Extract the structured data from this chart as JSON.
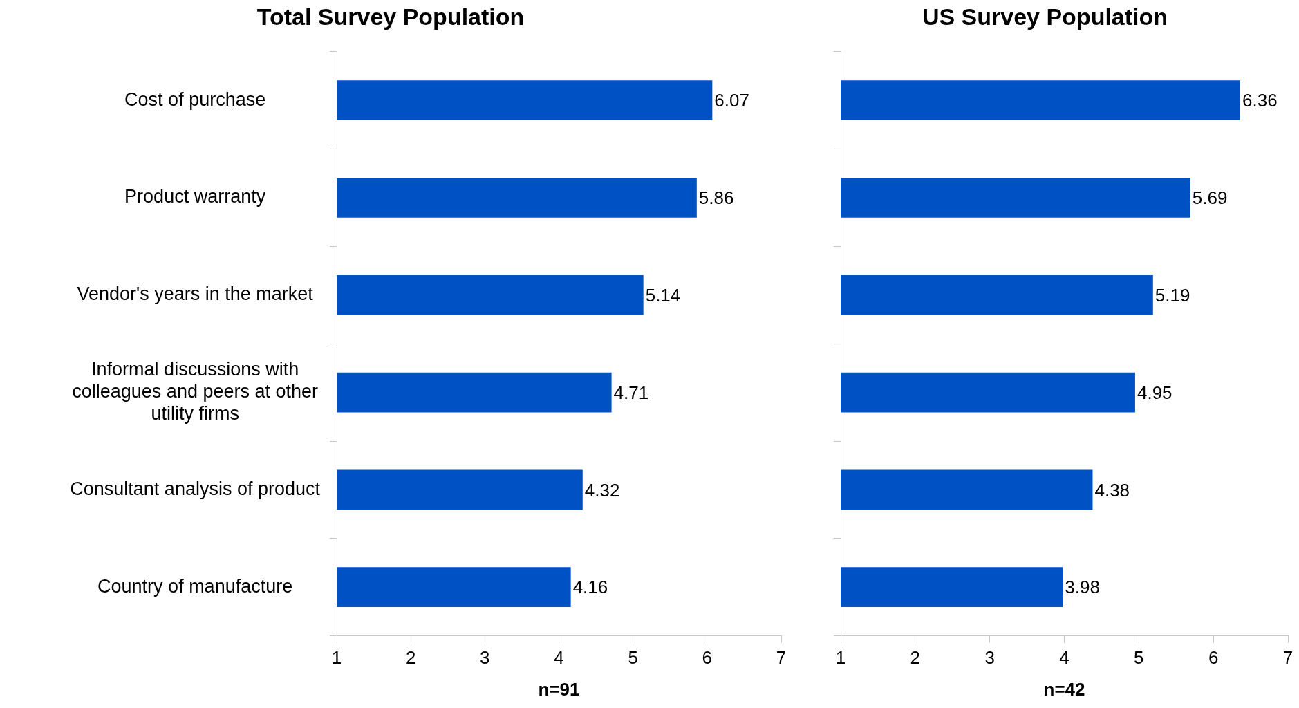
{
  "chart_data": [
    {
      "type": "bar",
      "orientation": "horizontal",
      "title": "Total Survey Population",
      "xlabel": "n=91",
      "categories": [
        "Cost of purchase",
        "Product warranty",
        "Vendor's years in the market",
        "Informal discussions with colleagues and peers at other utility firms",
        "Consultant analysis of product",
        "Country of manufacture"
      ],
      "values": [
        6.07,
        5.86,
        5.14,
        4.71,
        4.32,
        4.16
      ],
      "color": "#0052c4",
      "xlim": [
        1,
        7
      ],
      "xticks": [
        1,
        2,
        3,
        4,
        5,
        6,
        7
      ],
      "data_labels": true,
      "grid": false,
      "legend": false
    },
    {
      "type": "bar",
      "orientation": "horizontal",
      "title": "US Survey Population",
      "xlabel": "n=42",
      "categories": [
        null,
        null,
        null,
        null,
        null,
        null
      ],
      "values": [
        6.36,
        5.69,
        5.19,
        4.95,
        4.38,
        3.98
      ],
      "color": "#0052c4",
      "xlim": [
        1,
        7
      ],
      "xticks": [
        1,
        2,
        3,
        4,
        5,
        6,
        7
      ],
      "data_labels": true,
      "grid": false,
      "legend": false,
      "tick_labels": "x"
    }
  ]
}
